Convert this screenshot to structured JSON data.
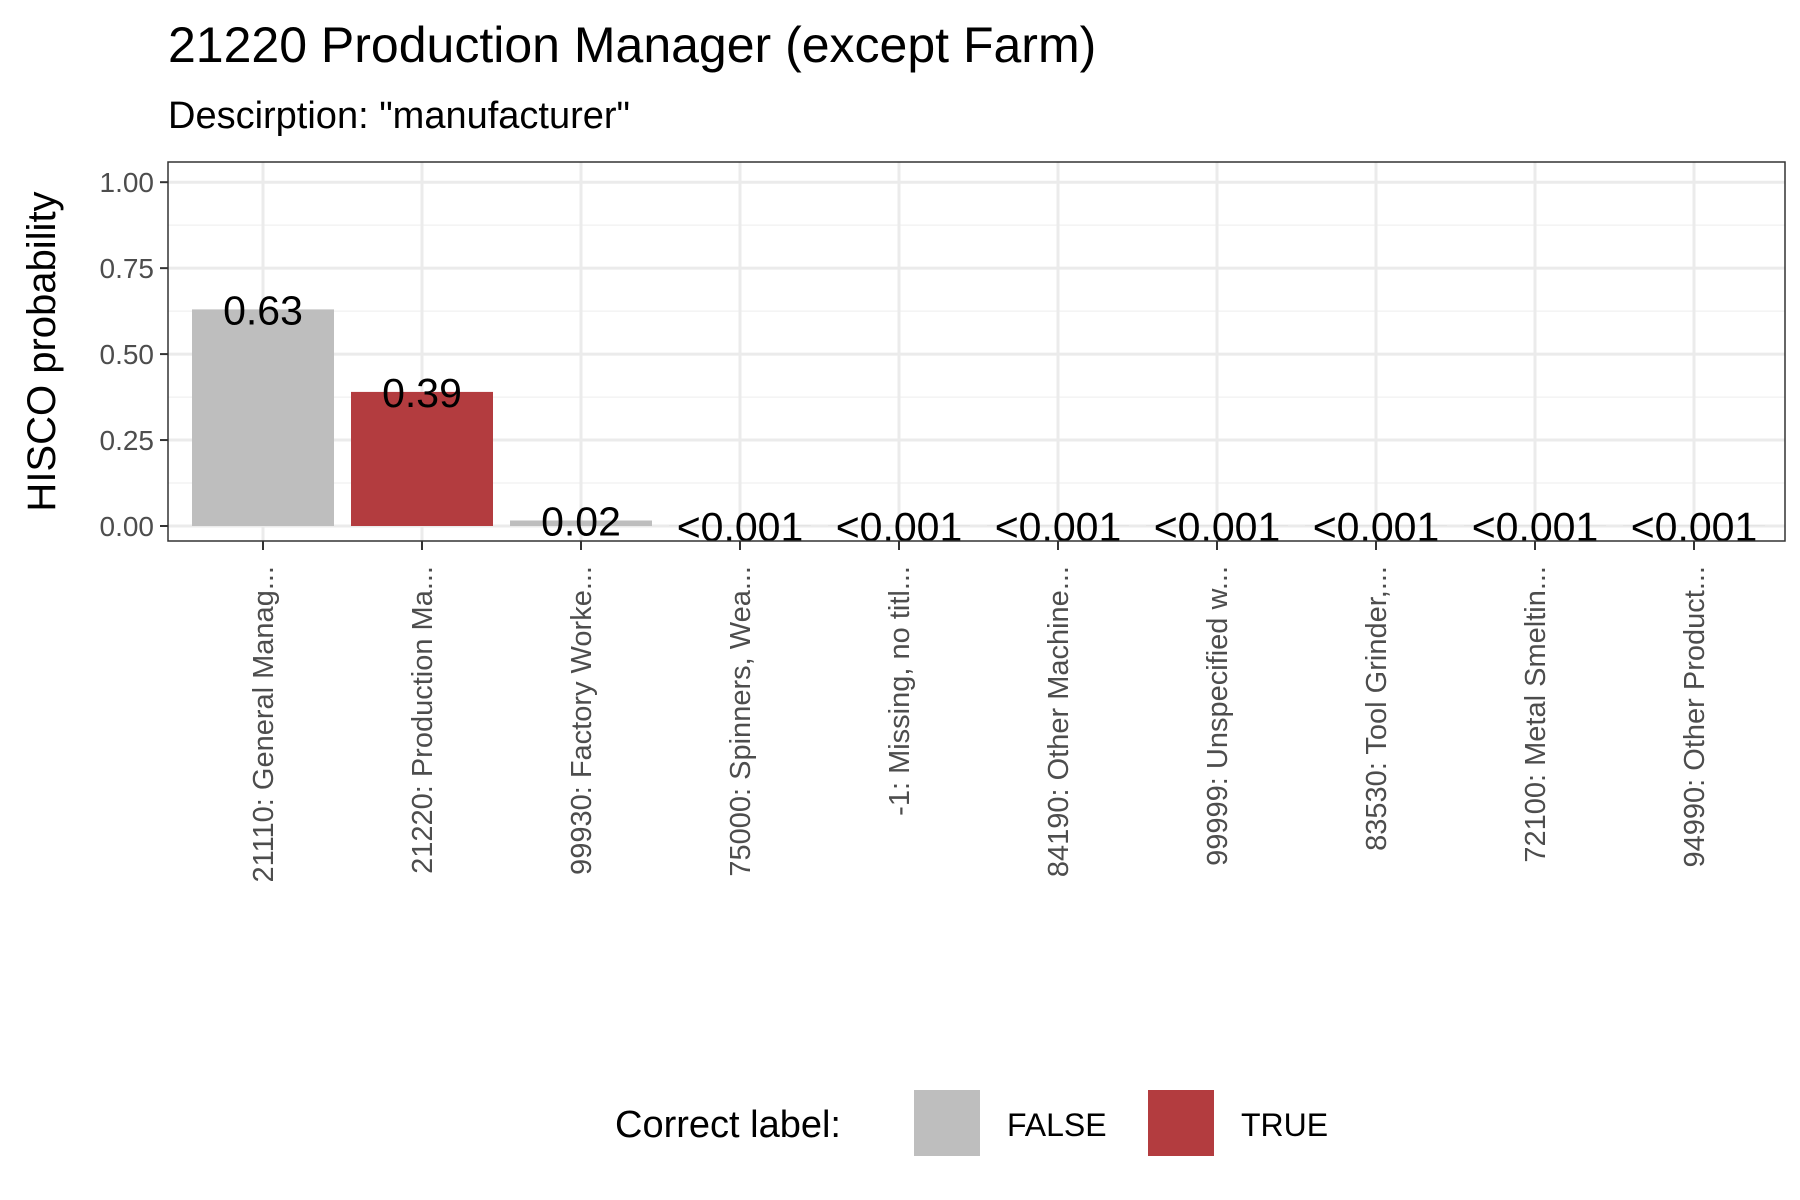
{
  "chart_data": {
    "type": "bar",
    "title": "21220 Production Manager (except Farm)",
    "subtitle": "Descirption: \"manufacturer\"",
    "ylabel": "HISCO probability",
    "xlabel": "",
    "ylim": [
      0,
      1.05
    ],
    "yticks": [
      0,
      0.25,
      0.5,
      0.75,
      1.0
    ],
    "ytick_labels": [
      "0.00",
      "0.25",
      "0.50",
      "0.75",
      "1.00"
    ],
    "grid": true,
    "categories": [
      "21110: General Manag...",
      "21220: Production Ma...",
      "99930: Factory Worke...",
      "75000: Spinners, Wea...",
      "-1: Missing, no titl...",
      "84190: Other Machine...",
      "99999: Unspecified w...",
      "83530: Tool Grinder,...",
      "72100: Metal Smeltin...",
      "94990: Other Product..."
    ],
    "values": [
      0.63,
      0.39,
      0.016,
      0.0005,
      0.0005,
      0.0005,
      0.0005,
      0.0005,
      0.0005,
      0.0005
    ],
    "value_labels": [
      "0.63",
      "0.39",
      "0.02",
      "<0.001",
      "<0.001",
      "<0.001",
      "<0.001",
      "<0.001",
      "<0.001",
      "<0.001"
    ],
    "correct": [
      false,
      true,
      false,
      false,
      false,
      false,
      false,
      false,
      false,
      false
    ],
    "legend": {
      "title": "Correct label:",
      "position": "bottom",
      "entries": [
        {
          "label": "FALSE",
          "color": "#bebebe"
        },
        {
          "label": "TRUE",
          "color": "#b33c3f"
        }
      ]
    },
    "colors": {
      "false": "#bebebe",
      "true": "#b33c3f",
      "grid_major": "#ebebeb",
      "grid_minor": "#f3f3f3",
      "panel_border": "#333333"
    }
  }
}
